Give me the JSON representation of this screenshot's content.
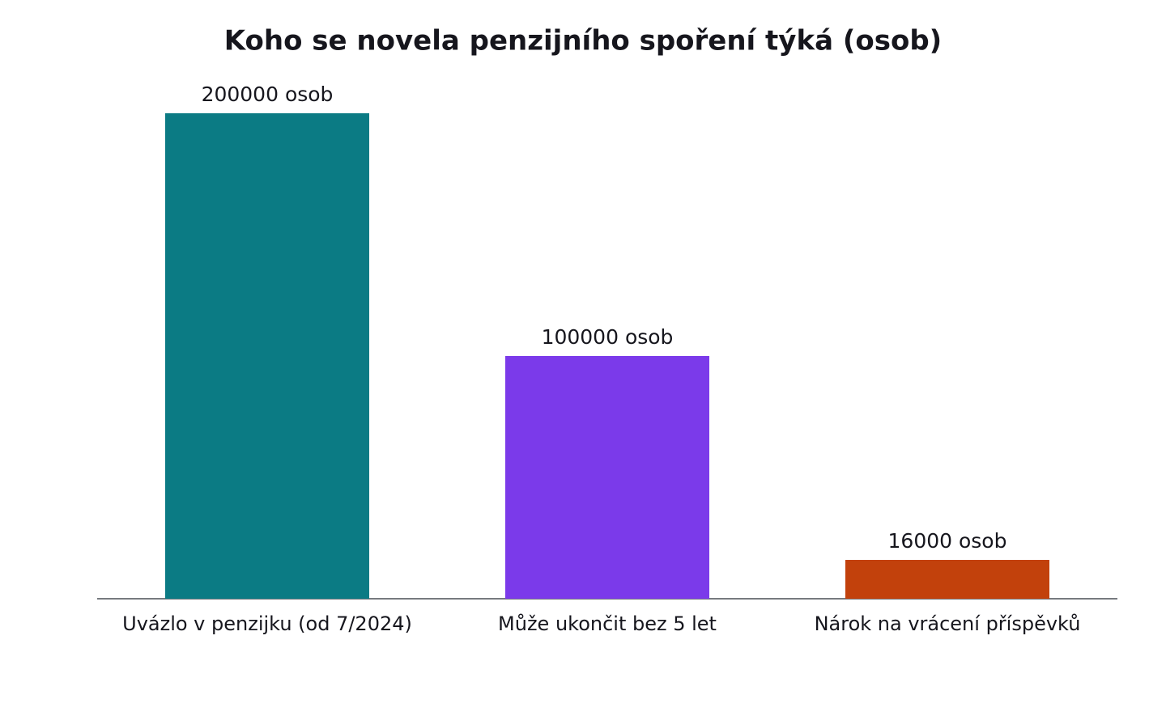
{
  "chart_data": {
    "type": "bar",
    "title": "Koho se novela penzijního spoření týká (osob)",
    "categories": [
      "Uvázlo v penzijku (od 7/2024)",
      "Může ukončit bez 5 let",
      "Nárok na vrácení příspěvků"
    ],
    "values": [
      200000,
      100000,
      16000
    ],
    "value_labels": [
      "200000 osob",
      "100000 osob",
      "16000 osob"
    ],
    "colors": [
      "#0b7b84",
      "#7b3aea",
      "#c2410c"
    ]
  }
}
